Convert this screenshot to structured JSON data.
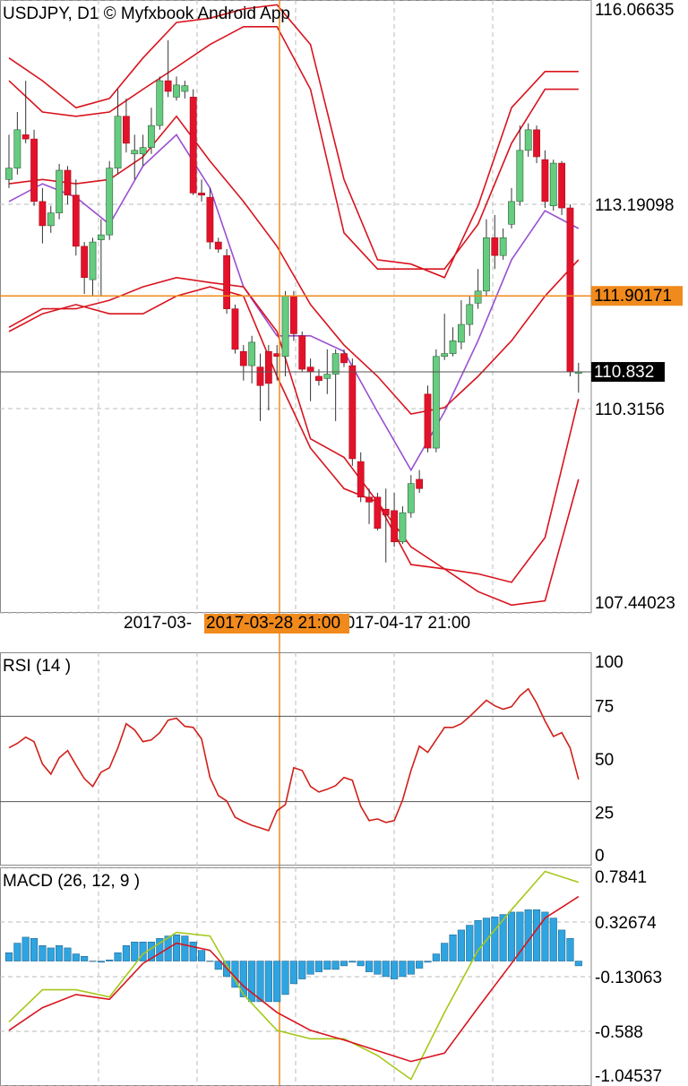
{
  "chart_data": [
    {
      "type": "candlestick",
      "title": "USDJPY, D1 © Myfxbook Android App",
      "x_labels": [
        "2017-03-",
        "2017-04-17 21:00"
      ],
      "crosshair_label": "2017-03-28 21:00",
      "crosshair_price": 111.90171,
      "crosshair_color": "#f08a1c",
      "last_price": 110.832,
      "up_color": "#66cc80",
      "down_color": "#e3122a",
      "open": [
        113.54,
        113.7,
        114.17,
        114.11,
        113.23,
        112.89,
        113.07,
        113.67,
        113.32,
        112.6,
        112.13,
        112.69,
        112.76,
        113.7,
        114.43,
        113.9,
        113.9,
        113.99,
        114.3,
        114.93,
        114.7,
        114.78,
        114.7,
        113.35,
        113.29,
        112.66,
        112.47,
        111.72,
        111.12,
        110.92,
        110.9,
        111.12,
        111.09,
        111.05,
        111.9,
        111.34,
        110.9,
        110.77,
        110.74,
        110.8,
        111.09,
        110.92,
        109.57,
        109.07,
        109.07,
        108.9,
        108.88,
        108.44,
        108.85,
        109.32,
        110.52,
        109.76,
        111.05,
        111.09,
        111.25,
        111.5,
        111.8,
        111.97,
        112.72,
        112.47,
        112.91,
        113.23,
        113.95,
        114.24,
        113.82,
        113.17,
        113.77,
        113.14,
        110.83
      ],
      "high": [
        114.17,
        114.49,
        114.93,
        114.24,
        113.42,
        113.17,
        113.76,
        113.73,
        113.54,
        112.66,
        112.72,
        112.98,
        113.8,
        114.81,
        114.68,
        114.17,
        114.17,
        114.55,
        114.99,
        115.5,
        114.99,
        114.93,
        114.81,
        113.54,
        113.42,
        112.72,
        112.56,
        111.78,
        111.21,
        111.34,
        111.09,
        111.21,
        111.21,
        111.97,
        111.97,
        111.4,
        111.02,
        110.87,
        111.15,
        111.15,
        111.15,
        111.02,
        109.7,
        109.19,
        109.13,
        109.19,
        109.13,
        108.94,
        109.38,
        109.45,
        110.64,
        111.15,
        111.65,
        111.46,
        111.84,
        111.9,
        112.28,
        112.98,
        113.04,
        112.85,
        113.42,
        114.3,
        114.33,
        114.3,
        113.95,
        113.82,
        113.8,
        113.19,
        110.96
      ],
      "low": [
        113.42,
        113.61,
        114.05,
        113.17,
        112.64,
        112.79,
        112.98,
        113.19,
        112.47,
        111.93,
        111.9,
        111.9,
        112.69,
        113.61,
        113.92,
        113.54,
        113.73,
        113.9,
        114.24,
        114.7,
        114.65,
        114.68,
        113.32,
        113.23,
        112.56,
        112.51,
        111.65,
        111.09,
        110.71,
        110.67,
        110.14,
        110.29,
        110.71,
        110.77,
        111.27,
        110.83,
        110.42,
        110.64,
        110.52,
        110.14,
        110.9,
        109.51,
        109.0,
        108.69,
        108.6,
        108.15,
        108.37,
        108.41,
        108.78,
        109.13,
        109.7,
        109.7,
        111.0,
        111.05,
        111.15,
        111.34,
        111.72,
        111.9,
        112.28,
        112.41,
        112.85,
        113.17,
        113.86,
        113.77,
        113.14,
        113.1,
        113.04,
        110.77,
        110.54
      ],
      "close": [
        113.7,
        114.24,
        114.11,
        113.23,
        112.89,
        113.07,
        113.67,
        113.32,
        112.6,
        112.16,
        112.66,
        112.76,
        113.7,
        114.43,
        114.05,
        113.95,
        113.99,
        114.3,
        114.93,
        114.78,
        114.87,
        114.86,
        113.35,
        113.32,
        112.66,
        112.56,
        111.72,
        111.15,
        110.92,
        111.25,
        110.64,
        110.67,
        111.05,
        111.9,
        111.37,
        110.87,
        110.83,
        110.71,
        110.8,
        111.09,
        110.96,
        109.61,
        109.07,
        109.0,
        108.63,
        108.82,
        108.44,
        108.85,
        109.26,
        109.19,
        109.76,
        111.05,
        111.09,
        111.27,
        111.5,
        111.78,
        111.97,
        112.72,
        112.47,
        112.72,
        113.23,
        113.95,
        114.24,
        113.86,
        113.23,
        113.77,
        113.14,
        110.83,
        110.83
      ],
      "overlays": [
        {
          "color": "#9a4fd0",
          "x": [
            0,
            4,
            8,
            12,
            16,
            20,
            24,
            28,
            32,
            36,
            40,
            44,
            48,
            52,
            56,
            60,
            64,
            68
          ],
          "values": [
            113.23,
            113.48,
            113.29,
            112.91,
            113.73,
            114.17,
            113.42,
            112.03,
            111.34,
            111.34,
            111.12,
            110.27,
            109.45,
            110.27,
            111.27,
            112.41,
            113.1,
            112.85
          ]
        },
        {
          "color": "#d8141e",
          "x": [
            0,
            4,
            8,
            12,
            16,
            20,
            24,
            28,
            32,
            36,
            40,
            44,
            48,
            52,
            56,
            60,
            64,
            68
          ],
          "values": [
            113.48,
            113.54,
            113.48,
            113.54,
            113.86,
            114.43,
            113.8,
            113.23,
            112.6,
            111.78,
            111.21,
            110.77,
            110.24,
            110.33,
            110.77,
            111.27,
            111.9,
            112.41
          ]
        },
        {
          "color": "#d8141e",
          "x": [
            0,
            4,
            8,
            12,
            16,
            20,
            24,
            28,
            32,
            36,
            40,
            44,
            48,
            52,
            56,
            60,
            64,
            68
          ],
          "values": [
            115.25,
            114.93,
            114.55,
            114.68,
            115.25,
            115.75,
            115.81,
            115.94,
            116.0,
            115.44,
            113.54,
            112.41,
            112.35,
            112.16,
            113.17,
            114.55,
            115.06,
            115.06
          ]
        },
        {
          "color": "#d8141e",
          "x": [
            0,
            4,
            8,
            12,
            16,
            20,
            24,
            28,
            32,
            36,
            40,
            44,
            48,
            52,
            56,
            60,
            64,
            68
          ],
          "values": [
            114.93,
            114.49,
            114.43,
            114.49,
            114.81,
            115.12,
            115.44,
            115.69,
            115.69,
            114.81,
            112.79,
            112.28,
            112.28,
            112.28,
            112.91,
            114.05,
            114.81,
            114.81
          ]
        },
        {
          "color": "#d8141e",
          "x": [
            0,
            4,
            8,
            12,
            16,
            20,
            24,
            28,
            32,
            36,
            40,
            44,
            48,
            52,
            56,
            60,
            64,
            68
          ],
          "values": [
            111.46,
            111.72,
            111.72,
            111.84,
            112.03,
            112.16,
            112.09,
            112.03,
            111.4,
            109.89,
            109.63,
            109.0,
            108.37,
            108.06,
            107.99,
            107.87,
            108.5,
            110.45
          ]
        },
        {
          "color": "#d8141e",
          "x": [
            0,
            4,
            8,
            12,
            16,
            20,
            24,
            28,
            32,
            36,
            40,
            44,
            48,
            52,
            56,
            60,
            64,
            68
          ],
          "values": [
            111.4,
            111.65,
            111.78,
            111.65,
            111.65,
            111.9,
            112.03,
            111.9,
            110.77,
            109.76,
            109.19,
            109.0,
            108.12,
            108.06,
            107.74,
            107.55,
            107.61,
            109.32
          ]
        }
      ],
      "ylim": [
        107.44023,
        116.06635
      ],
      "yticks": [
        116.06635,
        113.19098,
        110.3156,
        107.44023
      ],
      "grid": true
    },
    {
      "type": "line",
      "title": "RSI (14 )",
      "color": "#d0201a",
      "values": [
        55.2,
        57.3,
        60.2,
        58.1,
        47.6,
        42.9,
        50.5,
        53.9,
        47.2,
        40.8,
        37.1,
        43.8,
        45.9,
        55.2,
        66.5,
        63.6,
        58.1,
        58.9,
        62.3,
        68.2,
        69.1,
        65.3,
        64.8,
        59.4,
        41.3,
        32.8,
        30.3,
        22.7,
        20.6,
        18.9,
        17.7,
        16.4,
        25.7,
        28.6,
        45.9,
        44.6,
        37.1,
        34.5,
        35.8,
        37.5,
        41.3,
        40.0,
        27.8,
        21.1,
        21.9,
        20.2,
        21.1,
        30.7,
        44.6,
        56.0,
        53.1,
        58.9,
        64.8,
        64.8,
        66.5,
        69.9,
        73.7,
        77.5,
        74.9,
        73.3,
        74.5,
        79.6,
        82.9,
        76.2,
        67.8,
        60.6,
        62.3,
        55.2,
        40.4
      ],
      "levels": [
        70,
        30
      ],
      "ylim": [
        0,
        100
      ],
      "yticks": [
        100,
        75,
        50,
        25,
        0
      ],
      "grid": false
    },
    {
      "type": "macd",
      "title": "MACD (26, 12, 9 )",
      "histogram": {
        "color": "#2ea4e0",
        "values": [
          0.07,
          0.15,
          0.2,
          0.19,
          0.13,
          0.11,
          0.13,
          0.11,
          0.06,
          0.04,
          0,
          -0.01,
          0.01,
          0.07,
          0.13,
          0.16,
          0.16,
          0.16,
          0.19,
          0.21,
          0.22,
          0.21,
          0.16,
          0.09,
          0,
          -0.07,
          -0.13,
          -0.22,
          -0.3,
          -0.34,
          -0.34,
          -0.34,
          -0.34,
          -0.28,
          -0.19,
          -0.15,
          -0.11,
          -0.09,
          -0.07,
          -0.07,
          -0.04,
          -0.01,
          -0.04,
          -0.09,
          -0.11,
          -0.13,
          -0.15,
          -0.13,
          -0.11,
          -0.06,
          -0.01,
          0.06,
          0.15,
          0.22,
          0.26,
          0.3,
          0.34,
          0.36,
          0.37,
          0.39,
          0.41,
          0.41,
          0.43,
          0.43,
          0.41,
          0.36,
          0.26,
          0.19,
          -0.04
        ]
      },
      "lines": [
        {
          "color": "#a5c81a",
          "x": [
            0,
            4,
            8,
            12,
            16,
            20,
            24,
            28,
            32,
            36,
            40,
            44,
            48,
            52,
            56,
            60,
            64,
            68
          ],
          "values": [
            -0.51,
            -0.24,
            -0.24,
            -0.3,
            0.06,
            0.24,
            0.21,
            -0.28,
            -0.58,
            -0.65,
            -0.65,
            -0.79,
            -0.99,
            -0.43,
            0.09,
            0.43,
            0.75,
            0.66
          ]
        },
        {
          "color": "#d8141e",
          "x": [
            0,
            4,
            8,
            12,
            16,
            20,
            24,
            28,
            32,
            36,
            40,
            44,
            48,
            52,
            56,
            60,
            64,
            68
          ],
          "values": [
            -0.58,
            -0.39,
            -0.28,
            -0.32,
            -0.02,
            0.15,
            0.09,
            -0.21,
            -0.43,
            -0.58,
            -0.66,
            -0.75,
            -0.84,
            -0.77,
            -0.39,
            -0.02,
            0.36,
            0.54
          ]
        }
      ],
      "ylim": [
        -1.04537,
        0.7841
      ],
      "yticks": [
        0.7841,
        0.32674,
        -0.13063,
        -0.588,
        -1.04537
      ],
      "grid": true
    }
  ]
}
